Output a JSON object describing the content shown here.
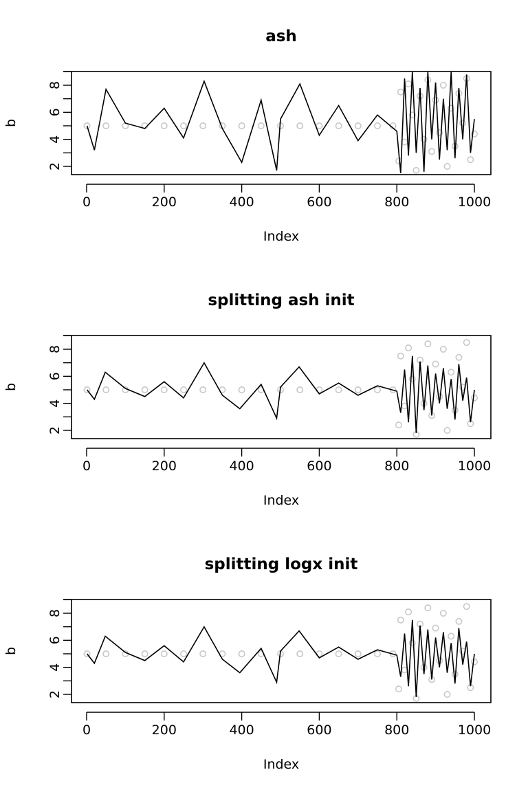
{
  "colors": {
    "line": "#000000",
    "points": "#c8c8c8",
    "background": "#ffffff"
  },
  "chart_data": [
    {
      "type": "line",
      "title": "ash",
      "xlabel": "Index",
      "ylabel": "b",
      "xlim": [
        0,
        1000
      ],
      "ylim": [
        1.5,
        9.0
      ],
      "x_ticks": [
        "0",
        "200",
        "400",
        "600",
        "800",
        "1000"
      ],
      "y_ticks": [
        "2",
        "4",
        "6",
        "8"
      ],
      "grid": false,
      "description_of_series": "observed points (grey circles) mostly near 5 for index 1-800, widely scattered 2-9 for index 800-1000; fitted line (black) fluctuates roughly 3-7 before 800 and 2-9 after",
      "series": [
        {
          "render": "points",
          "x": [
            1,
            50,
            100,
            150,
            200,
            250,
            300,
            350,
            400,
            450,
            500,
            550,
            600,
            650,
            700,
            750,
            790,
            805,
            810,
            820,
            830,
            840,
            850,
            860,
            870,
            880,
            890,
            900,
            910,
            920,
            930,
            940,
            950,
            960,
            970,
            980,
            990,
            1000
          ],
          "y": [
            5.0,
            5.0,
            5.0,
            5.0,
            5.0,
            5.0,
            5.0,
            5.0,
            5.0,
            5.0,
            5.0,
            5.0,
            5.0,
            5.0,
            5.0,
            5.0,
            5.0,
            2.4,
            7.5,
            3.8,
            8.1,
            5.8,
            1.7,
            7.2,
            4.0,
            8.4,
            3.1,
            6.9,
            4.5,
            8.0,
            2.0,
            6.3,
            3.5,
            7.4,
            5.2,
            8.5,
            2.5,
            4.4
          ]
        },
        {
          "render": "line",
          "x": [
            1,
            20,
            50,
            100,
            150,
            200,
            250,
            303,
            350,
            400,
            450,
            490,
            500,
            550,
            600,
            650,
            700,
            750,
            800,
            810,
            820,
            830,
            840,
            850,
            860,
            870,
            880,
            890,
            900,
            910,
            920,
            930,
            940,
            950,
            960,
            970,
            980,
            990,
            1000
          ],
          "y": [
            5.0,
            3.2,
            7.7,
            5.2,
            4.8,
            6.3,
            4.1,
            8.3,
            4.8,
            2.3,
            6.9,
            1.7,
            5.5,
            8.1,
            4.3,
            6.5,
            3.9,
            5.8,
            4.6,
            1.5,
            8.5,
            2.8,
            9.0,
            3.0,
            7.8,
            1.6,
            9.0,
            4.0,
            8.2,
            2.5,
            7.0,
            3.2,
            9.0,
            2.6,
            7.8,
            4.0,
            8.8,
            3.0,
            5.5
          ]
        }
      ]
    },
    {
      "type": "line",
      "title": "splitting ash init",
      "xlabel": "Index",
      "ylabel": "b",
      "xlim": [
        0,
        1000
      ],
      "ylim": [
        1.5,
        9.0
      ],
      "x_ticks": [
        "0",
        "200",
        "400",
        "600",
        "800",
        "1000"
      ],
      "y_ticks": [
        "2",
        "4",
        "6",
        "8"
      ],
      "grid": false,
      "series": [
        {
          "render": "points",
          "x": [
            1,
            50,
            100,
            150,
            200,
            250,
            300,
            350,
            400,
            450,
            500,
            550,
            600,
            650,
            700,
            750,
            790,
            805,
            810,
            820,
            830,
            840,
            850,
            860,
            870,
            880,
            890,
            900,
            910,
            920,
            930,
            940,
            950,
            960,
            970,
            980,
            990,
            1000
          ],
          "y": [
            5.0,
            5.0,
            5.0,
            5.0,
            5.0,
            5.0,
            5.0,
            5.0,
            5.0,
            5.0,
            5.0,
            5.0,
            5.0,
            5.0,
            5.0,
            5.0,
            5.0,
            2.4,
            7.5,
            3.8,
            8.1,
            5.8,
            1.7,
            7.2,
            4.0,
            8.4,
            3.1,
            6.9,
            4.5,
            8.0,
            2.0,
            6.3,
            3.5,
            7.4,
            5.2,
            8.5,
            2.5,
            4.4
          ]
        },
        {
          "render": "line",
          "x": [
            1,
            20,
            48,
            100,
            150,
            200,
            250,
            303,
            350,
            395,
            450,
            490,
            500,
            548,
            600,
            650,
            700,
            750,
            800,
            810,
            820,
            830,
            840,
            850,
            860,
            870,
            880,
            890,
            900,
            910,
            920,
            930,
            940,
            950,
            960,
            970,
            980,
            990,
            1000
          ],
          "y": [
            5.0,
            4.3,
            6.3,
            5.1,
            4.5,
            5.6,
            4.4,
            7.0,
            4.6,
            3.6,
            5.4,
            2.9,
            5.2,
            6.7,
            4.7,
            5.5,
            4.6,
            5.3,
            4.9,
            3.3,
            6.5,
            2.6,
            7.5,
            1.8,
            7.1,
            3.5,
            6.8,
            3.1,
            6.2,
            4.0,
            6.6,
            3.6,
            5.8,
            2.8,
            6.9,
            4.2,
            5.9,
            2.6,
            5.0
          ]
        }
      ]
    },
    {
      "type": "line",
      "title": "splitting logx init",
      "xlabel": "Index",
      "ylabel": "b",
      "xlim": [
        0,
        1000
      ],
      "ylim": [
        1.5,
        9.0
      ],
      "x_ticks": [
        "0",
        "200",
        "400",
        "600",
        "800",
        "1000"
      ],
      "y_ticks": [
        "2",
        "4",
        "6",
        "8"
      ],
      "grid": false,
      "series": [
        {
          "render": "points",
          "x": [
            1,
            50,
            100,
            150,
            200,
            250,
            300,
            350,
            400,
            450,
            500,
            550,
            600,
            650,
            700,
            750,
            790,
            805,
            810,
            820,
            830,
            840,
            850,
            860,
            870,
            880,
            890,
            900,
            910,
            920,
            930,
            940,
            950,
            960,
            970,
            980,
            990,
            1000
          ],
          "y": [
            5.0,
            5.0,
            5.0,
            5.0,
            5.0,
            5.0,
            5.0,
            5.0,
            5.0,
            5.0,
            5.0,
            5.0,
            5.0,
            5.0,
            5.0,
            5.0,
            5.0,
            2.4,
            7.5,
            3.8,
            8.1,
            5.8,
            1.7,
            7.2,
            4.0,
            8.4,
            3.1,
            6.9,
            4.5,
            8.0,
            2.0,
            6.3,
            3.5,
            7.4,
            5.2,
            8.5,
            2.5,
            4.4
          ]
        },
        {
          "render": "line",
          "x": [
            1,
            20,
            48,
            100,
            150,
            200,
            250,
            303,
            350,
            395,
            450,
            490,
            500,
            548,
            600,
            650,
            700,
            750,
            800,
            810,
            820,
            830,
            840,
            850,
            860,
            870,
            880,
            890,
            900,
            910,
            920,
            930,
            940,
            950,
            960,
            970,
            980,
            990,
            1000
          ],
          "y": [
            5.0,
            4.3,
            6.3,
            5.1,
            4.5,
            5.6,
            4.4,
            7.0,
            4.6,
            3.6,
            5.4,
            2.9,
            5.2,
            6.7,
            4.7,
            5.5,
            4.6,
            5.3,
            4.9,
            3.3,
            6.5,
            2.6,
            7.5,
            1.8,
            7.1,
            3.5,
            6.8,
            3.1,
            6.2,
            4.0,
            6.6,
            3.6,
            5.8,
            2.8,
            6.9,
            4.2,
            5.9,
            2.6,
            5.0
          ]
        }
      ]
    }
  ]
}
